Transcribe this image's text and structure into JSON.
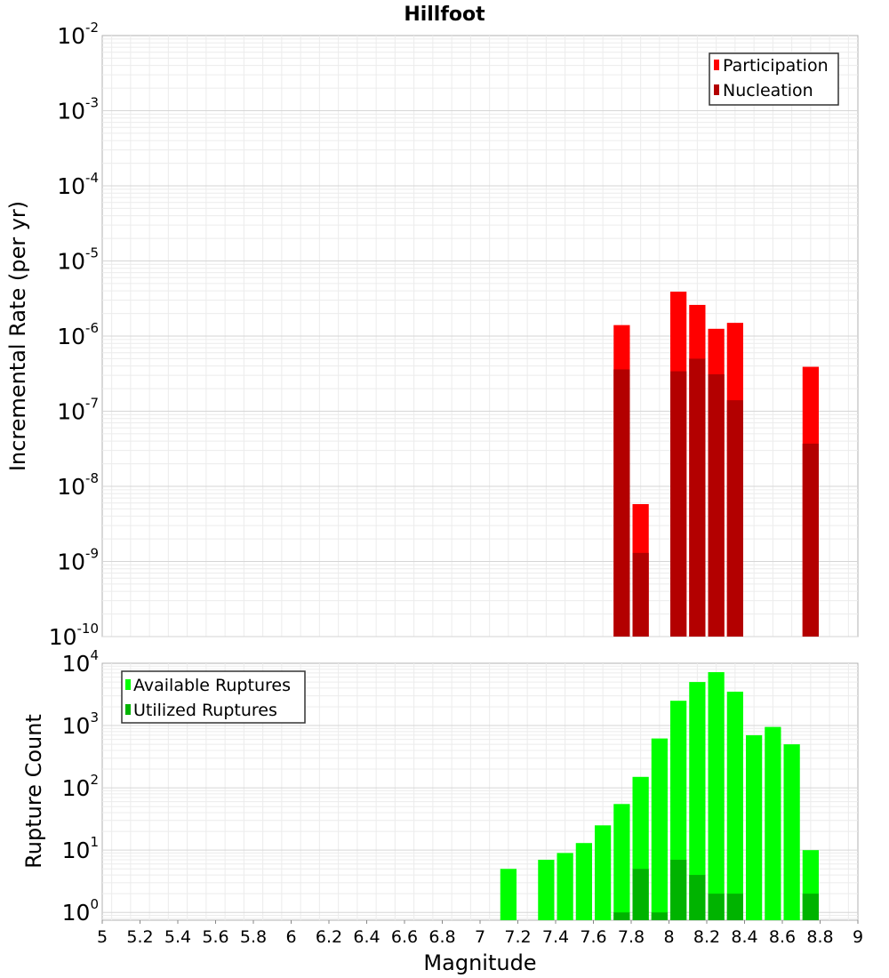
{
  "chart_data": [
    {
      "type": "bar",
      "title": "Hillfoot",
      "xlabel": "",
      "ylabel": "Incremental Rate (per yr)",
      "yscale": "log",
      "ylim": [
        1e-10,
        0.01
      ],
      "xlim": [
        5,
        9
      ],
      "grid": true,
      "legend_position": "top-right",
      "y_tick_exponents": [
        "-2",
        "-3",
        "-4",
        "-5",
        "-6",
        "-7",
        "-8",
        "-9",
        "-10"
      ],
      "x": [
        7.75,
        7.85,
        8.05,
        8.15,
        8.25,
        8.35,
        8.75
      ],
      "series": [
        {
          "name": "Participation",
          "color": "#ff0000",
          "values": [
            1.4e-06,
            5.8e-09,
            3.9e-06,
            2.6e-06,
            1.25e-06,
            1.5e-06,
            3.9e-07
          ]
        },
        {
          "name": "Nucleation",
          "color": "#b30000",
          "values": [
            3.6e-07,
            1.3e-09,
            3.4e-07,
            5e-07,
            3.1e-07,
            1.4e-07,
            3.7e-08
          ]
        }
      ]
    },
    {
      "type": "bar",
      "title": "",
      "xlabel": "Magnitude",
      "ylabel": "Rupture Count",
      "yscale": "log",
      "ylim": [
        0.75,
        10000
      ],
      "xlim": [
        5,
        9
      ],
      "grid": true,
      "legend_position": "top-left",
      "y_tick_exponents": [
        "4",
        "3",
        "2",
        "1",
        "0"
      ],
      "x_ticks": [
        "5",
        "5.2",
        "5.4",
        "5.6",
        "5.8",
        "6",
        "6.2",
        "6.4",
        "6.6",
        "6.8",
        "7",
        "7.2",
        "7.4",
        "7.6",
        "7.8",
        "8",
        "8.2",
        "8.4",
        "8.6",
        "8.8",
        "9"
      ],
      "x": [
        7.15,
        7.35,
        7.45,
        7.55,
        7.65,
        7.75,
        7.85,
        7.95,
        8.05,
        8.15,
        8.25,
        8.35,
        8.45,
        8.55,
        8.65,
        8.75
      ],
      "series": [
        {
          "name": "Available Ruptures",
          "color": "#00ff00",
          "values": [
            5,
            7,
            9,
            13,
            25,
            55,
            150,
            620,
            2500,
            5000,
            7200,
            3500,
            700,
            950,
            500,
            10
          ]
        },
        {
          "name": "Utilized Ruptures",
          "color": "#00b300",
          "values": [
            0,
            0,
            0,
            0,
            0,
            1,
            5,
            1,
            7,
            4,
            2,
            2,
            0,
            0,
            0,
            2
          ]
        }
      ]
    }
  ]
}
